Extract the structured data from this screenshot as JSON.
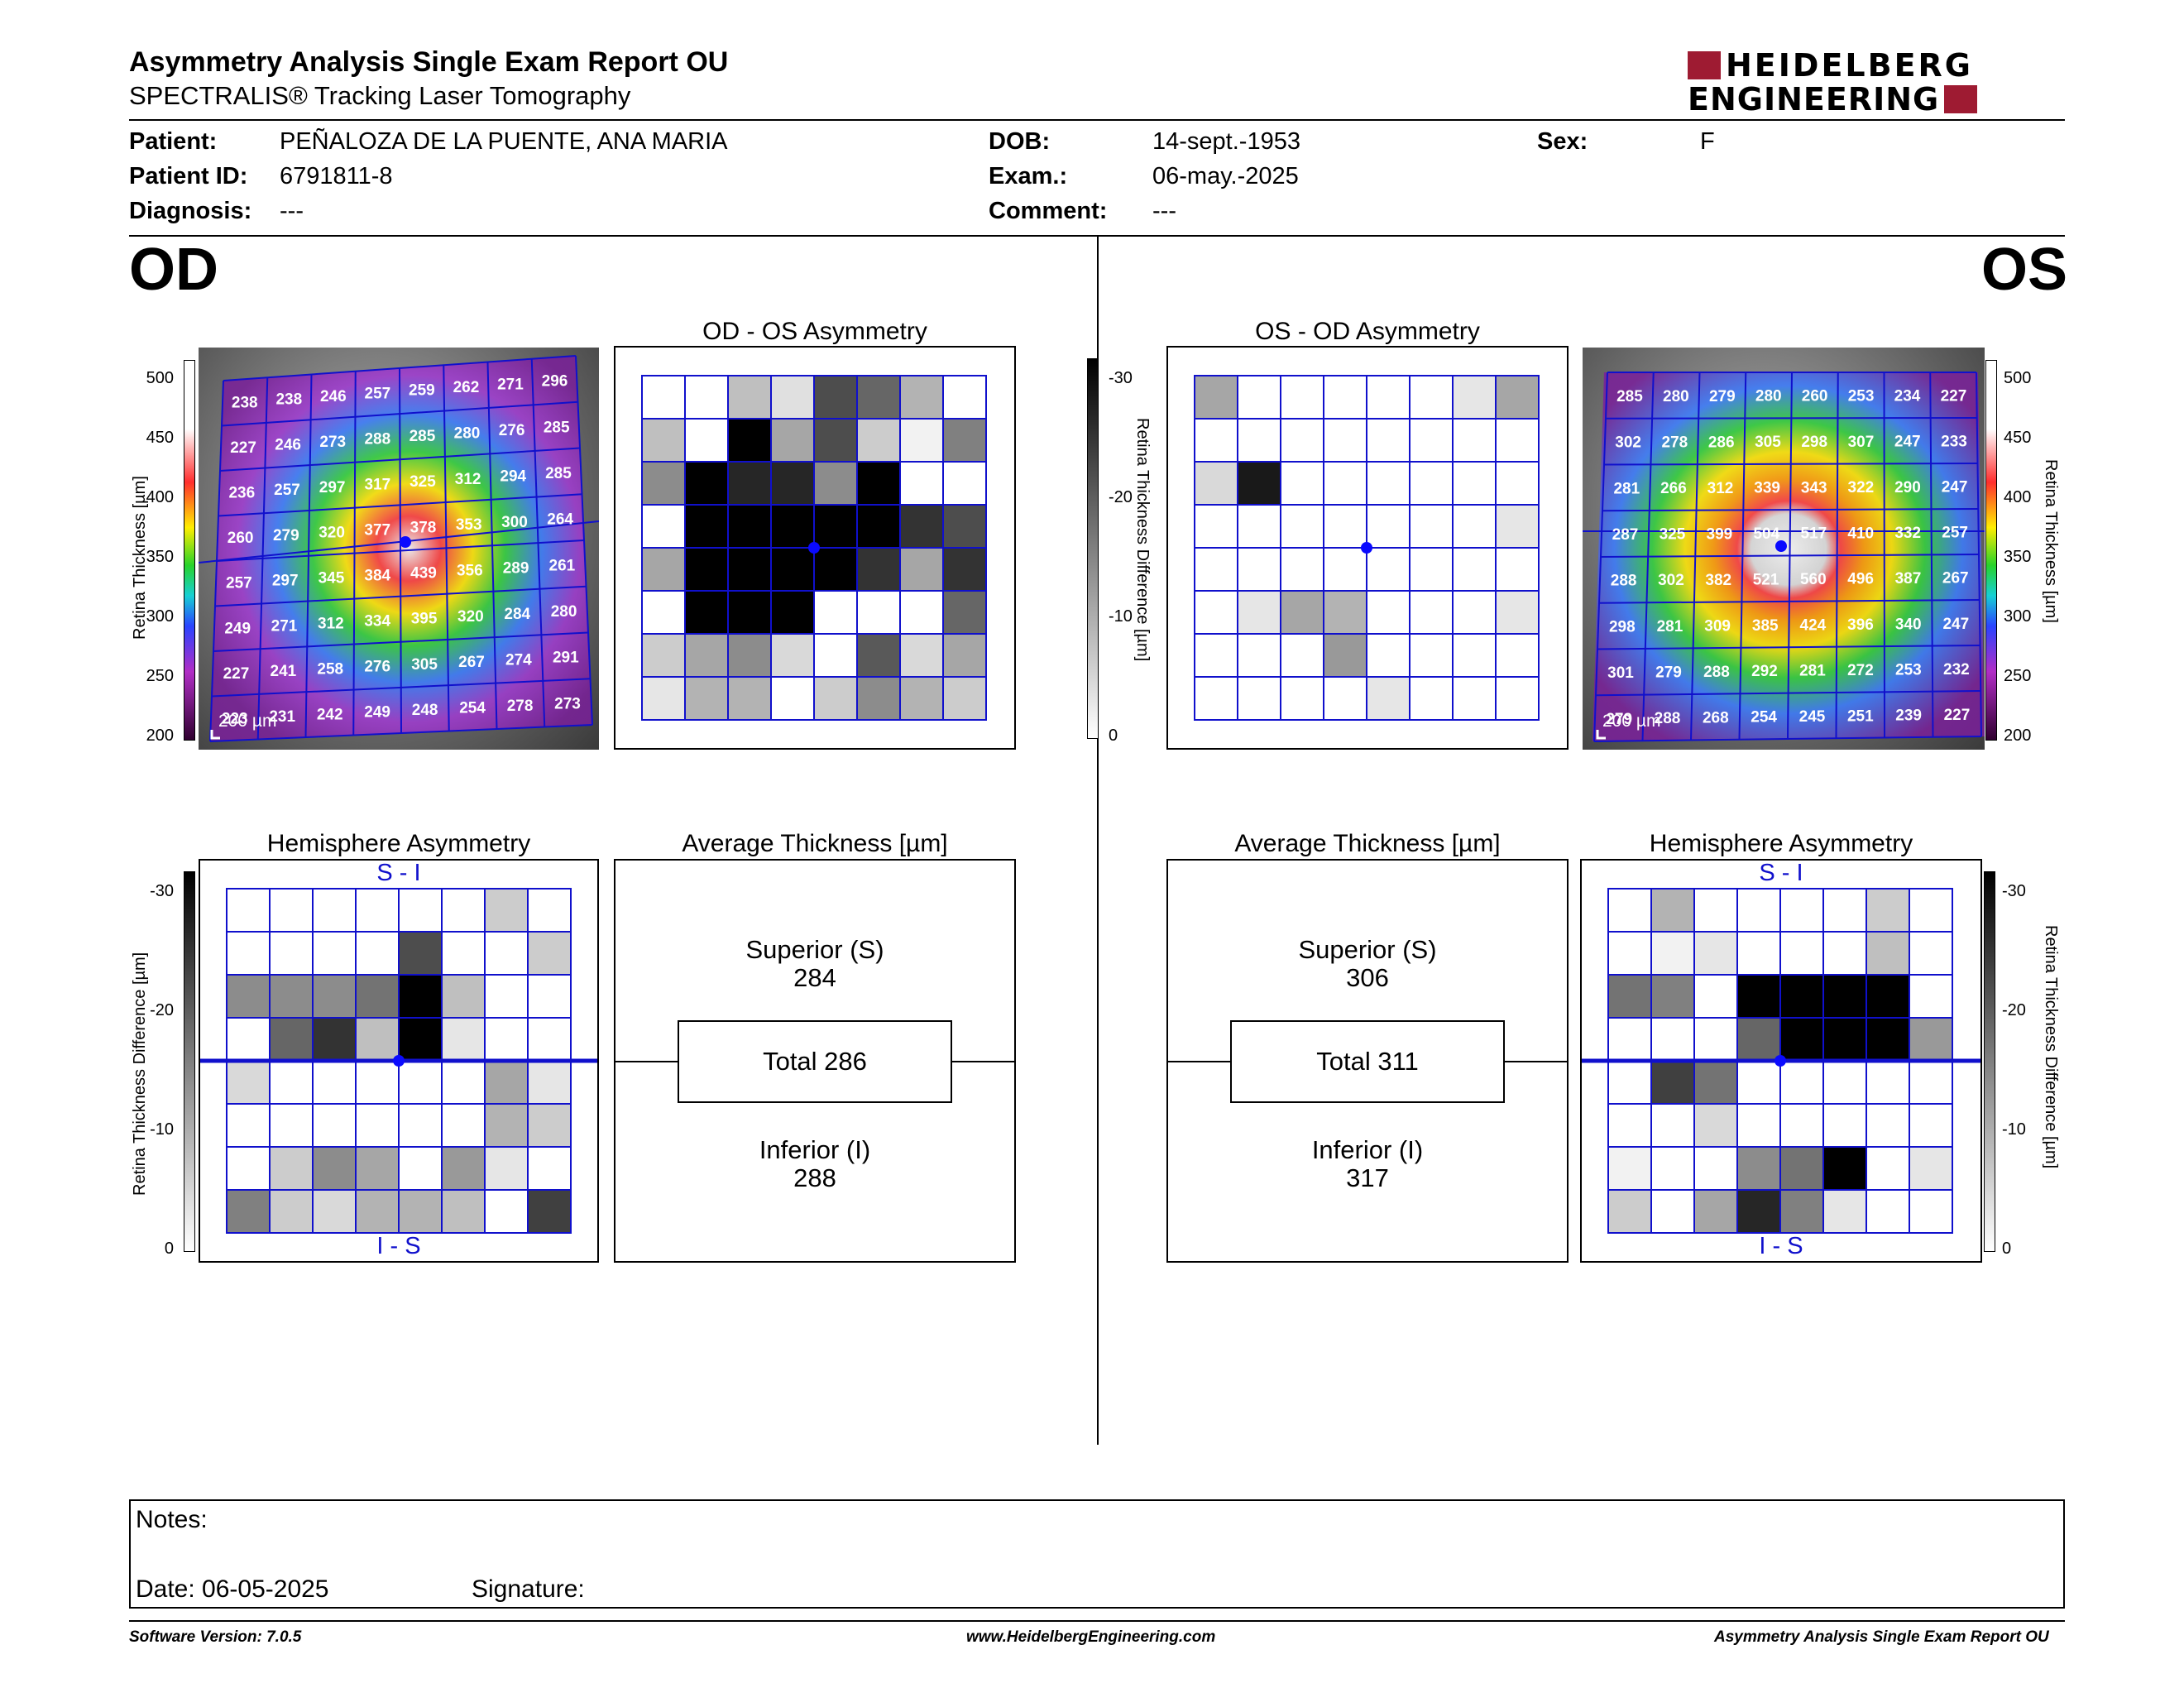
{
  "header": {
    "title": "Asymmetry Analysis Single Exam Report OU",
    "subtitle": "SPECTRALIS® Tracking Laser Tomography",
    "logo_line1": "HEIDELBERG",
    "logo_line2": "ENGINEERING"
  },
  "patient": {
    "patient_label": "Patient:",
    "patient_value": "PEÑALOZA DE LA PUENTE, ANA MARIA",
    "id_label": "Patient ID:",
    "id_value": "6791811-8",
    "diag_label": "Diagnosis:",
    "diag_value": "---",
    "dob_label": "DOB:",
    "dob_value": "14-sept.-1953",
    "exam_label": "Exam.:",
    "exam_value": "06-may.-2025",
    "comment_label": "Comment:",
    "comment_value": "---",
    "sex_label": "Sex:",
    "sex_value": "F"
  },
  "od": {
    "label": "OD",
    "asym_title": "OD - OS Asymmetry",
    "hemi_title": "Hemisphere Asymmetry",
    "hemi_top": "S - I",
    "hemi_bottom": "I - S",
    "avg_title": "Average Thickness [µm]",
    "superior_label": "Superior (S)",
    "superior_value": "284",
    "total_label": "Total 286",
    "inferior_label": "Inferior (I)",
    "inferior_value": "288",
    "scale_label": "200 µm",
    "thickness_grid": [
      [
        238,
        238,
        246,
        257,
        259,
        262,
        271,
        296
      ],
      [
        227,
        246,
        273,
        288,
        285,
        280,
        276,
        285
      ],
      [
        236,
        257,
        297,
        317,
        325,
        312,
        294,
        285
      ],
      [
        260,
        279,
        320,
        377,
        378,
        353,
        300,
        264
      ],
      [
        257,
        297,
        345,
        384,
        439,
        356,
        289,
        261
      ],
      [
        249,
        271,
        312,
        334,
        395,
        320,
        284,
        280
      ],
      [
        227,
        241,
        258,
        276,
        305,
        267,
        274,
        291
      ],
      [
        223,
        231,
        242,
        249,
        248,
        254,
        278,
        273
      ]
    ],
    "asym_grid": [
      [
        0,
        0,
        0.25,
        0.12,
        0.7,
        0.6,
        0.3,
        0
      ],
      [
        0.25,
        0,
        1,
        0.35,
        0.7,
        0.2,
        0.05,
        0.5
      ],
      [
        0.45,
        1,
        0.85,
        0.85,
        0.45,
        1,
        0,
        0
      ],
      [
        0,
        1,
        1,
        1,
        1,
        1,
        0.8,
        0.7
      ],
      [
        0.35,
        1,
        1,
        1,
        1,
        0.8,
        0.35,
        0.8
      ],
      [
        0,
        1,
        1,
        1,
        0,
        0,
        0,
        0.6
      ],
      [
        0.2,
        0.35,
        0.45,
        0.15,
        0,
        0.65,
        0.15,
        0.35
      ],
      [
        0.1,
        0.3,
        0.3,
        0,
        0.2,
        0.45,
        0.3,
        0.2
      ]
    ],
    "hemi_grid": [
      [
        0,
        0,
        0,
        0,
        0,
        0,
        0.2,
        0
      ],
      [
        0,
        0,
        0,
        0,
        0.7,
        0,
        0,
        0.2
      ],
      [
        0.45,
        0.45,
        0.45,
        0.55,
        1,
        0.25,
        0,
        0
      ],
      [
        0,
        0.6,
        0.8,
        0.25,
        1,
        0.1,
        0,
        0
      ],
      [
        0.15,
        0,
        0,
        0,
        0,
        0,
        0.35,
        0.1
      ],
      [
        0,
        0,
        0,
        0,
        0,
        0,
        0.3,
        0.2
      ],
      [
        0,
        0.2,
        0.45,
        0.35,
        0,
        0.4,
        0.1,
        0
      ],
      [
        0.5,
        0.2,
        0.15,
        0.3,
        0.3,
        0.25,
        0,
        0.75
      ]
    ]
  },
  "os": {
    "label": "OS",
    "asym_title": "OS - OD Asymmetry",
    "hemi_title": "Hemisphere Asymmetry",
    "hemi_top": "S - I",
    "hemi_bottom": "I - S",
    "avg_title": "Average Thickness [µm]",
    "superior_label": "Superior (S)",
    "superior_value": "306",
    "total_label": "Total 311",
    "inferior_label": "Inferior (I)",
    "inferior_value": "317",
    "scale_label": "200 µm",
    "thickness_grid": [
      [
        285,
        280,
        279,
        280,
        260,
        253,
        234,
        227
      ],
      [
        302,
        278,
        286,
        305,
        298,
        307,
        247,
        233
      ],
      [
        281,
        266,
        312,
        339,
        343,
        322,
        290,
        247
      ],
      [
        287,
        325,
        399,
        504,
        517,
        410,
        332,
        257
      ],
      [
        288,
        302,
        382,
        521,
        560,
        496,
        387,
        267
      ],
      [
        298,
        281,
        309,
        385,
        424,
        396,
        340,
        247
      ],
      [
        301,
        279,
        288,
        292,
        281,
        272,
        253,
        232
      ],
      [
        279,
        288,
        268,
        254,
        245,
        251,
        239,
        227
      ]
    ],
    "asym_grid": [
      [
        0.35,
        0,
        0,
        0,
        0,
        0,
        0.1,
        0.35
      ],
      [
        0,
        0,
        0,
        0,
        0,
        0,
        0,
        0
      ],
      [
        0.15,
        0.9,
        0,
        0,
        0,
        0,
        0,
        0
      ],
      [
        0,
        0,
        0,
        0,
        0,
        0,
        0,
        0.1
      ],
      [
        0,
        0,
        0,
        0,
        0,
        0,
        0,
        0
      ],
      [
        0,
        0.1,
        0.35,
        0.3,
        0,
        0,
        0,
        0.1
      ],
      [
        0,
        0,
        0,
        0.4,
        0,
        0,
        0,
        0
      ],
      [
        0,
        0,
        0,
        0,
        0.1,
        0,
        0,
        0
      ]
    ],
    "hemi_grid": [
      [
        0,
        0.3,
        0,
        0,
        0,
        0,
        0.2,
        0
      ],
      [
        0,
        0.05,
        0.1,
        0,
        0,
        0,
        0.25,
        0
      ],
      [
        0.55,
        0.5,
        0,
        1,
        1,
        1,
        1,
        0
      ],
      [
        0,
        0,
        0,
        0.6,
        1,
        1,
        1,
        0.4
      ],
      [
        0,
        0.75,
        0.55,
        0,
        0,
        0,
        0,
        0
      ],
      [
        0,
        0,
        0.15,
        0,
        0,
        0,
        0,
        0
      ],
      [
        0.05,
        0,
        0,
        0.45,
        0.55,
        1,
        0,
        0.1
      ],
      [
        0.2,
        0,
        0.35,
        0.85,
        0.5,
        0.1,
        0,
        0
      ]
    ]
  },
  "scales": {
    "thickness_label": "Retina Thickness [µm]",
    "thickness_ticks": [
      "500",
      "450",
      "400",
      "350",
      "300",
      "250",
      "200"
    ],
    "diff_label": "Retina Thickness Difference [µm]",
    "diff_ticks": [
      "-30",
      "-20",
      "-10",
      "0"
    ]
  },
  "colors": {
    "logo_red": "#9e1b32",
    "grid_blue": "#1010cc",
    "fovea_dot": "#0a0aff"
  },
  "notes": {
    "notes_label": "Notes:",
    "date_label": "Date: 06-05-2025",
    "signature_label": "Signature:"
  },
  "footer": {
    "version": "Software Version: 7.0.5",
    "website": "www.HeidelbergEngineering.com",
    "report_name": "Asymmetry Analysis Single Exam Report OU"
  }
}
